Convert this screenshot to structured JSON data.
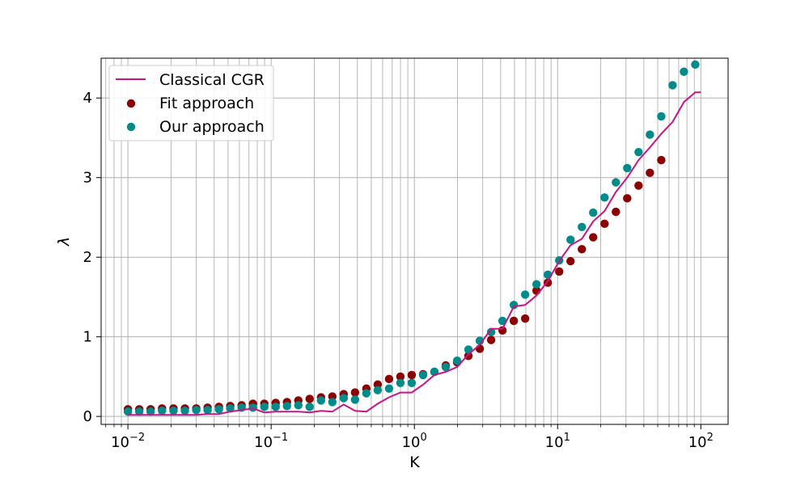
{
  "chart_data": {
    "type": "scatter",
    "title": "",
    "xlabel": "K",
    "ylabel": "λ",
    "xscale": "log",
    "xlim": [
      0.0065,
      155
    ],
    "ylim": [
      -0.1,
      4.5
    ],
    "x_ticks": [
      {
        "value": 0.01,
        "base": "10",
        "exp": "−2"
      },
      {
        "value": 0.1,
        "base": "10",
        "exp": "−1"
      },
      {
        "value": 1,
        "base": "10",
        "exp": "0"
      },
      {
        "value": 10,
        "base": "10",
        "exp": "1"
      },
      {
        "value": 100,
        "base": "10",
        "exp": "2"
      }
    ],
    "y_ticks": [
      {
        "value": 0,
        "label": "0"
      },
      {
        "value": 1,
        "label": "1"
      },
      {
        "value": 2,
        "label": "2"
      },
      {
        "value": 3,
        "label": "3"
      },
      {
        "value": 4,
        "label": "4"
      }
    ],
    "grid": "both-major-minor",
    "legend_position": "top-left",
    "series": [
      {
        "name": "Classical CGR",
        "kind": "line",
        "color": "#c71585",
        "x": [
          0.01,
          0.012,
          0.0144,
          0.0173,
          0.0208,
          0.025,
          0.03,
          0.036,
          0.0432,
          0.0518,
          0.0622,
          0.0746,
          0.0896,
          0.1075,
          0.129,
          0.1548,
          0.1857,
          0.2229,
          0.2675,
          0.321,
          0.3852,
          0.4622,
          0.5546,
          0.6656,
          0.7987,
          0.9584,
          1.15,
          1.38,
          1.656,
          1.988,
          2.385,
          2.862,
          3.435,
          4.122,
          4.946,
          5.935,
          7.122,
          8.547,
          10.26,
          12.31,
          14.77,
          17.72,
          21.27,
          25.52,
          30.62,
          36.75,
          44.1,
          52.92,
          63.5,
          76.2,
          91.44,
          100
        ],
        "y": [
          0.02,
          0.02,
          0.02,
          0.02,
          0.02,
          0.02,
          0.02,
          0.03,
          0.03,
          0.06,
          0.08,
          0.1,
          0.05,
          0.06,
          0.06,
          0.06,
          0.05,
          0.07,
          0.06,
          0.15,
          0.07,
          0.06,
          0.16,
          0.24,
          0.3,
          0.3,
          0.4,
          0.52,
          0.56,
          0.62,
          0.78,
          0.9,
          1.1,
          1.1,
          1.38,
          1.4,
          1.52,
          1.7,
          1.95,
          2.15,
          2.23,
          2.45,
          2.58,
          2.82,
          3.0,
          3.22,
          3.38,
          3.55,
          3.7,
          3.95,
          4.07,
          4.07
        ]
      },
      {
        "name": "Fit approach",
        "kind": "scatter",
        "color": "#8b0000",
        "x": [
          0.01,
          0.012,
          0.0144,
          0.0173,
          0.0208,
          0.025,
          0.03,
          0.036,
          0.0432,
          0.0518,
          0.0622,
          0.0746,
          0.0896,
          0.1075,
          0.129,
          0.1548,
          0.1857,
          0.2229,
          0.2675,
          0.321,
          0.3852,
          0.4622,
          0.5546,
          0.6656,
          0.7987,
          0.9584,
          1.15,
          1.38,
          1.656,
          1.988,
          2.385,
          2.862,
          3.435,
          4.122,
          4.946,
          5.935,
          7.122,
          8.547,
          10.26,
          12.31,
          14.77,
          17.72,
          21.27,
          25.52,
          30.62,
          36.75,
          44.1,
          52.92
        ],
        "y": [
          0.09,
          0.09,
          0.09,
          0.1,
          0.1,
          0.1,
          0.1,
          0.11,
          0.12,
          0.13,
          0.14,
          0.16,
          0.16,
          0.17,
          0.18,
          0.2,
          0.22,
          0.24,
          0.25,
          0.28,
          0.3,
          0.35,
          0.4,
          0.47,
          0.5,
          0.52,
          0.53,
          0.56,
          0.64,
          0.68,
          0.76,
          0.85,
          0.96,
          1.08,
          1.2,
          1.23,
          1.58,
          1.68,
          1.82,
          1.95,
          2.1,
          2.25,
          2.42,
          2.57,
          2.74,
          2.9,
          3.06,
          3.22
        ]
      },
      {
        "name": "Our approach",
        "kind": "scatter",
        "color": "#008b8b",
        "x": [
          0.01,
          0.012,
          0.0144,
          0.0173,
          0.0208,
          0.025,
          0.03,
          0.036,
          0.0432,
          0.0518,
          0.0622,
          0.0746,
          0.0896,
          0.1075,
          0.129,
          0.1548,
          0.1857,
          0.2229,
          0.2675,
          0.321,
          0.3852,
          0.4622,
          0.5546,
          0.6656,
          0.7987,
          0.9584,
          1.15,
          1.38,
          1.656,
          1.988,
          2.385,
          2.862,
          3.435,
          4.122,
          4.946,
          5.935,
          7.122,
          8.547,
          10.26,
          12.31,
          14.77,
          17.72,
          21.27,
          25.52,
          30.62,
          36.75,
          44.1,
          52.92,
          63.5,
          76.2,
          91.44
        ],
        "y": [
          0.06,
          0.06,
          0.06,
          0.07,
          0.07,
          0.07,
          0.08,
          0.08,
          0.09,
          0.1,
          0.11,
          0.11,
          0.12,
          0.12,
          0.13,
          0.14,
          0.12,
          0.2,
          0.18,
          0.23,
          0.21,
          0.29,
          0.33,
          0.35,
          0.42,
          0.42,
          0.52,
          0.56,
          0.62,
          0.7,
          0.84,
          0.95,
          1.06,
          1.2,
          1.4,
          1.53,
          1.66,
          1.78,
          1.96,
          2.22,
          2.38,
          2.56,
          2.75,
          2.94,
          3.12,
          3.32,
          3.54,
          3.77,
          4.16,
          4.33,
          4.42
        ]
      }
    ]
  }
}
